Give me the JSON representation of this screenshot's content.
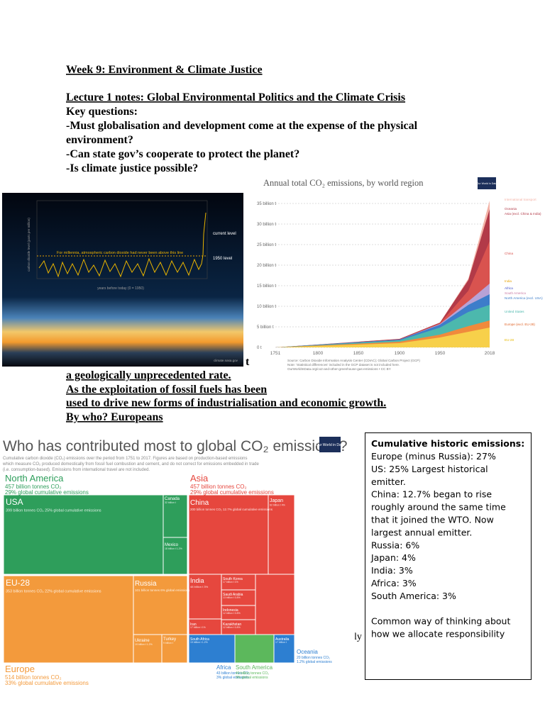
{
  "header": {
    "title": "Week 9: Environment & Climate Justice",
    "lecture": "Lecture 1 notes: Global Environmental Politics and the Climate Crisis"
  },
  "questions": {
    "heading": "Key questions:",
    "lines": [
      "-Must globalisation and development come at the expense of the physical",
      "environment?",
      "-Can state gov’s cooperate to protect the planet?",
      "-Is climate justice possible?"
    ]
  },
  "body": {
    "fragment": "t",
    "lines": [
      "a geologically unprecedented rate.",
      "As the exploitation of fossil fuels has been",
      "used to drive new forms of industrialisation and economic growth.",
      "By who? Europeans"
    ],
    "tail": "dly"
  },
  "figure1": {
    "annotations": [
      "current level",
      "1950 level",
      "For millennia, atmospheric carbon dioxide had never been above this line"
    ],
    "y_label": "carbon dioxide level (parts per million)",
    "x_label": "years before today (0 = 1950)",
    "credit": "climate.nasa.gov"
  },
  "figure2": {
    "title": "Annual total CO₂ emissions, by world region",
    "logo": "Our World in Data",
    "y_labels": [
      "35 billion t",
      "30 billion t",
      "25 billion t",
      "20 billion t",
      "15 billion t",
      "10 billion t",
      "5 billion t",
      "0 t"
    ],
    "x_labels": [
      "1751",
      "1800",
      "1850",
      "1900",
      "1950",
      "2018"
    ],
    "legend": [
      "International transport",
      "Oceania",
      "Asia (excl. China & India)",
      "China",
      "India",
      "Africa",
      "South America",
      "North America (excl. USA)",
      "United States",
      "Europe (excl. EU-28)",
      "EU-28"
    ],
    "source": [
      "Source: Carbon Dioxide Information Analysis Center (CDIAC); Global Carbon Project (GCP)",
      "Note: 'Statistical differences' included in the GCP dataset is not included here.",
      "OurWorldInData.org/co2-and-other-greenhouse-gas-emissions • CC BY"
    ]
  },
  "figure3": {
    "title": "Who has contributed most to global CO₂ emissions?",
    "logo": "Our World in Data",
    "subtitle": [
      "Cumulative carbon dioxide (CO₂) emissions over the period from 1751 to 2017. Figures are based on production-based emissions",
      "which measure CO₂ produced domestically from fossil fuel combustion and cement, and do not correct for emissions embedded in trade",
      "(i.e. consumption-based). Emissions from international travel are not included."
    ],
    "regions": [
      {
        "name": "North America",
        "amount": "457 billion tonnes CO₂",
        "share": "29% global cumulative emissions"
      },
      {
        "name": "Asia",
        "amount": "457 billion tonnes CO₂",
        "share": "29% global cumulative emissions"
      },
      {
        "name": "Europe",
        "amount": "514 billion tonnes CO₂",
        "share": "33% global cumulative emissions"
      },
      {
        "name": "Africa",
        "amount": "43 billion tonnes CO₂",
        "share": "3% global emissions"
      },
      {
        "name": "South America",
        "amount": "40 billion tonnes CO₂",
        "share": "3% global emissions"
      },
      {
        "name": "Oceania",
        "amount": "20 billion tonnes CO₂",
        "share": "1.2% global emissions"
      }
    ],
    "countries": [
      {
        "name": "USA",
        "detail": "399 billion tonnes CO₂ 25% global cumulative emissions"
      },
      {
        "name": "Canada",
        "detail": "32 billion t"
      },
      {
        "name": "Mexico",
        "detail": "18 billion t 1.2%"
      },
      {
        "name": "EU-28",
        "detail": "353 billion tonnes CO₂ 22% global cumulative emissions"
      },
      {
        "name": "Russia",
        "detail": "101 billion tonnes 6% global emissions"
      },
      {
        "name": "Ukraine",
        "detail": "19 billion t 1.2%"
      },
      {
        "name": "Turkey",
        "detail": "9 billion t"
      },
      {
        "name": "China",
        "detail": "200 billion tonnes CO₂ 12.7% global cumulative emissions"
      },
      {
        "name": "Japan",
        "detail": "62 billion t 4%"
      },
      {
        "name": "India",
        "detail": "48 billion t 3%"
      },
      {
        "name": "South Korea",
        "detail": "17 billion t 1%"
      },
      {
        "name": "Saudi Arabia",
        "detail": "13 billion t 0.8%"
      },
      {
        "name": "Indonesia",
        "detail": "12 billion t 0.8%"
      },
      {
        "name": "Iran",
        "detail": "17 billion t 1%"
      },
      {
        "name": "Kazakhstan",
        "detail": "12 billion t 0.8%"
      },
      {
        "name": "South Africa",
        "detail": "19 billion t 1.2%"
      },
      {
        "name": "Australia",
        "detail": "17 billion t"
      }
    ]
  },
  "notes_box": {
    "title": "Cumulative historic emissions:",
    "lines": [
      "Europe (minus Russia): 27%",
      "US: 25% Largest historical",
      "emitter.",
      "China: 12.7% began to rise",
      "roughly around the same time",
      "that it joined the WTO. Now",
      "largest annual emitter.",
      "Russia: 6%",
      "Japan: 4%",
      "India: 3%",
      "Africa: 3%",
      "South America: 3%",
      "",
      "Common way of thinking about",
      "how we allocate responsibility"
    ]
  }
}
